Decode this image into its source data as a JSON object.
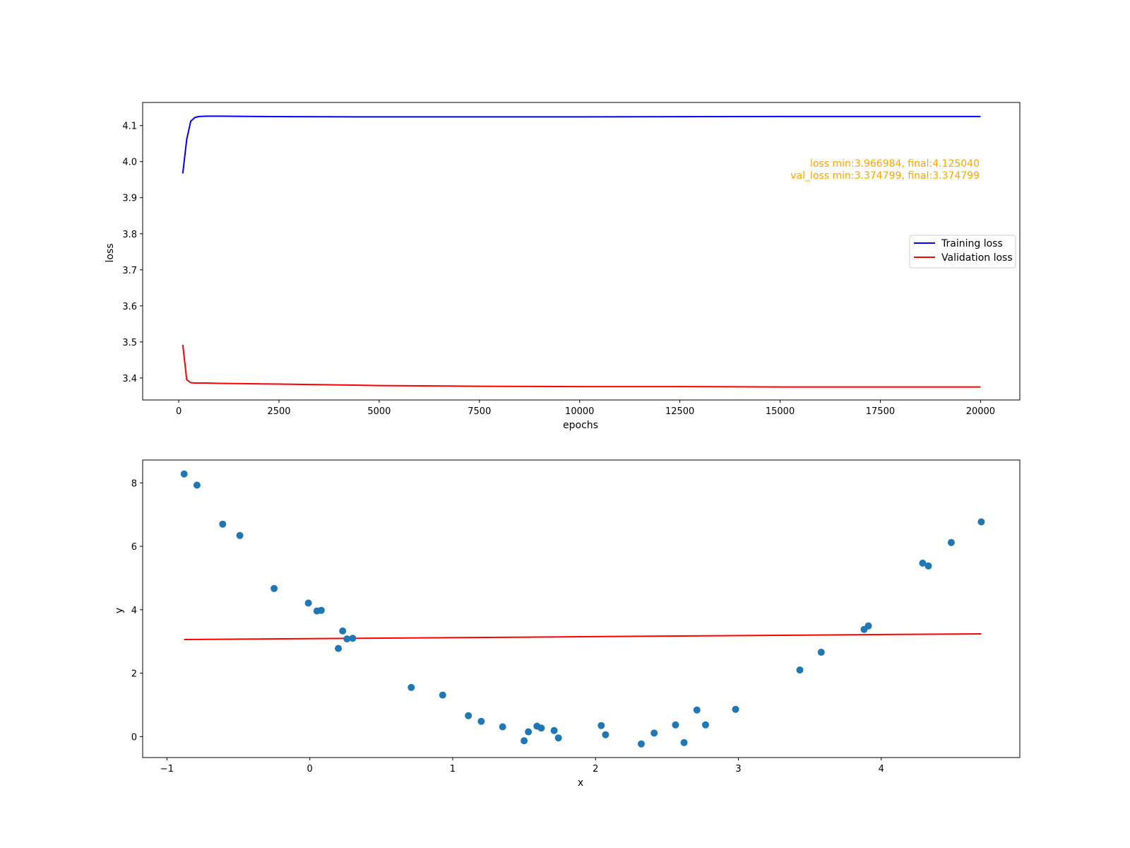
{
  "chart_data": [
    {
      "type": "line",
      "title": "",
      "xlabel": "epochs",
      "ylabel": "loss",
      "xlim": [
        -900,
        20980
      ],
      "ylim": [
        3.339,
        4.164
      ],
      "xticks": [
        0,
        2500,
        5000,
        7500,
        10000,
        12500,
        15000,
        17500,
        20000
      ],
      "xtick_labels": [
        "0",
        "2500",
        "5000",
        "7500",
        "10000",
        "12500",
        "15000",
        "17500",
        "20000"
      ],
      "yticks": [
        3.4,
        3.5,
        3.6,
        3.7,
        3.8,
        3.9,
        4.0,
        4.1
      ],
      "ytick_labels": [
        "3.4",
        "3.5",
        "3.6",
        "3.7",
        "3.8",
        "3.9",
        "4.0",
        "4.1"
      ],
      "grid": false,
      "legend_position": "center-right",
      "series": [
        {
          "name": "Training loss",
          "color": "#0000ff",
          "x": [
            100,
            200,
            300,
            400,
            500,
            700,
            1000,
            2000,
            5000,
            10000,
            15000,
            20000
          ],
          "y": [
            3.967,
            4.062,
            4.112,
            4.122,
            4.125,
            4.126,
            4.126,
            4.125,
            4.124,
            4.124,
            4.125,
            4.125
          ]
        },
        {
          "name": "Validation loss",
          "color": "#ff0000",
          "x": [
            100,
            200,
            300,
            400,
            700,
            1000,
            2500,
            5000,
            7500,
            10000,
            12500,
            15000,
            17500,
            20000
          ],
          "y": [
            3.492,
            3.395,
            3.387,
            3.386,
            3.386,
            3.385,
            3.383,
            3.379,
            3.377,
            3.376,
            3.376,
            3.375,
            3.375,
            3.375
          ]
        }
      ],
      "annotation": {
        "color": "#ffa500",
        "lines": [
          "loss min:3.966984, final:4.125040",
          "val_loss min:3.374799, final:3.374799"
        ]
      }
    },
    {
      "type": "scatter",
      "title": "",
      "xlabel": "x",
      "ylabel": "y",
      "xlim": [
        -1.17,
        4.97
      ],
      "ylim": [
        -0.66,
        8.72
      ],
      "xticks": [
        -1,
        0,
        1,
        2,
        3,
        4
      ],
      "xtick_labels": [
        "−1",
        "0",
        "1",
        "2",
        "3",
        "4"
      ],
      "yticks": [
        0,
        2,
        4,
        6,
        8
      ],
      "ytick_labels": [
        "0",
        "2",
        "4",
        "6",
        "8"
      ],
      "grid": false,
      "points_color": "#1f77b4",
      "points": [
        {
          "x": -0.88,
          "y": 8.28
        },
        {
          "x": -0.79,
          "y": 7.93
        },
        {
          "x": -0.61,
          "y": 6.7
        },
        {
          "x": -0.49,
          "y": 6.34
        },
        {
          "x": -0.25,
          "y": 4.67
        },
        {
          "x": -0.01,
          "y": 4.21
        },
        {
          "x": 0.05,
          "y": 3.96
        },
        {
          "x": 0.08,
          "y": 3.98
        },
        {
          "x": 0.2,
          "y": 2.78
        },
        {
          "x": 0.23,
          "y": 3.33
        },
        {
          "x": 0.26,
          "y": 3.08
        },
        {
          "x": 0.3,
          "y": 3.1
        },
        {
          "x": 0.71,
          "y": 1.55
        },
        {
          "x": 0.93,
          "y": 1.31
        },
        {
          "x": 1.11,
          "y": 0.66
        },
        {
          "x": 1.2,
          "y": 0.48
        },
        {
          "x": 1.35,
          "y": 0.31
        },
        {
          "x": 1.5,
          "y": -0.13
        },
        {
          "x": 1.53,
          "y": 0.15
        },
        {
          "x": 1.59,
          "y": 0.33
        },
        {
          "x": 1.62,
          "y": 0.27
        },
        {
          "x": 1.71,
          "y": 0.19
        },
        {
          "x": 1.74,
          "y": -0.04
        },
        {
          "x": 2.04,
          "y": 0.35
        },
        {
          "x": 2.07,
          "y": 0.06
        },
        {
          "x": 2.32,
          "y": -0.23
        },
        {
          "x": 2.41,
          "y": 0.11
        },
        {
          "x": 2.56,
          "y": 0.37
        },
        {
          "x": 2.62,
          "y": -0.19
        },
        {
          "x": 2.71,
          "y": 0.84
        },
        {
          "x": 2.77,
          "y": 0.37
        },
        {
          "x": 2.98,
          "y": 0.86
        },
        {
          "x": 3.43,
          "y": 2.1
        },
        {
          "x": 3.58,
          "y": 2.66
        },
        {
          "x": 3.88,
          "y": 3.38
        },
        {
          "x": 3.91,
          "y": 3.49
        },
        {
          "x": 4.29,
          "y": 5.47
        },
        {
          "x": 4.33,
          "y": 5.38
        },
        {
          "x": 4.49,
          "y": 6.12
        },
        {
          "x": 4.7,
          "y": 6.77
        }
      ],
      "fit_line": {
        "color": "#ff0000",
        "x": [
          -0.88,
          4.7
        ],
        "y": [
          3.06,
          3.24
        ]
      }
    }
  ]
}
